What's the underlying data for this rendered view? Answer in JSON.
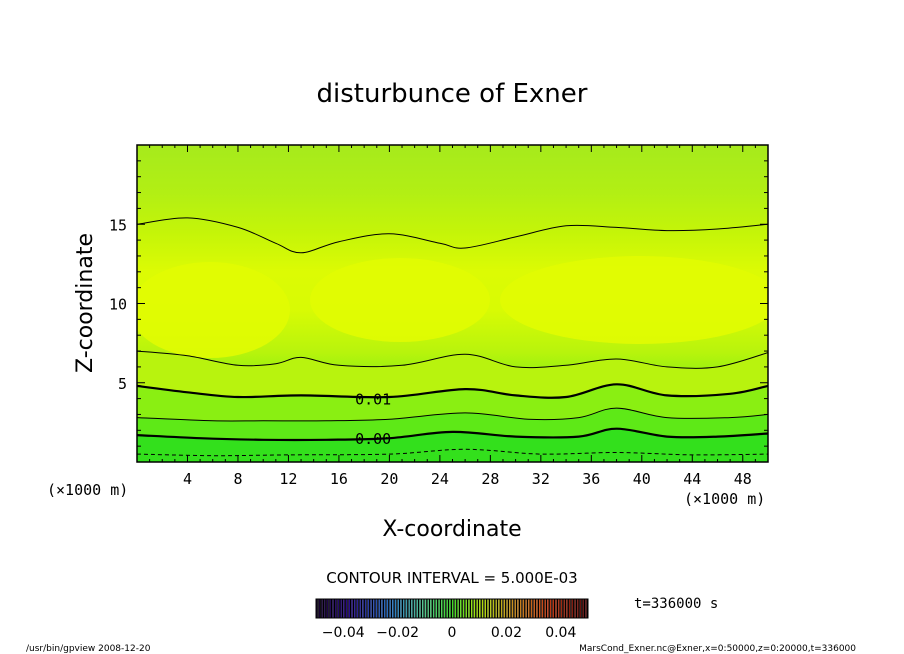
{
  "chart_data": {
    "type": "contour",
    "title": "disturbunce of Exner",
    "xlabel": "X-coordinate",
    "ylabel": "Z-coordinate",
    "x_unit_note": "(×1000 m)",
    "y_unit_note": "(×1000 m)",
    "xlim": [
      0,
      50
    ],
    "ylim": [
      0,
      20
    ],
    "x_ticks": [
      "4",
      "8",
      "12",
      "16",
      "20",
      "24",
      "28",
      "32",
      "36",
      "40",
      "44",
      "48"
    ],
    "x_tick_values": [
      4,
      8,
      12,
      16,
      20,
      24,
      28,
      32,
      36,
      40,
      44,
      48
    ],
    "y_ticks": [
      "5",
      "10",
      "15"
    ],
    "y_tick_values": [
      5,
      10,
      15
    ],
    "contour_interval_label": "CONTOUR INTERVAL = 5.000E-03",
    "contour_labels": [
      {
        "text": "0.01",
        "x": 17.2,
        "z": 4.0
      },
      {
        "text": "0.00",
        "x": 17.2,
        "z": 1.5
      }
    ],
    "contour_lines": [
      {
        "name": "contour-0.00",
        "bold": true,
        "dashed": false,
        "points": [
          [
            0,
            1.7
          ],
          [
            5,
            1.5
          ],
          [
            10,
            1.4
          ],
          [
            15,
            1.4
          ],
          [
            20,
            1.5
          ],
          [
            25,
            1.9
          ],
          [
            30,
            1.6
          ],
          [
            35,
            1.6
          ],
          [
            38,
            2.1
          ],
          [
            42,
            1.6
          ],
          [
            46,
            1.6
          ],
          [
            50,
            1.8
          ]
        ]
      },
      {
        "name": "contour-0.005",
        "bold": false,
        "dashed": false,
        "points": [
          [
            0,
            2.8
          ],
          [
            6,
            2.6
          ],
          [
            10,
            2.6
          ],
          [
            15,
            2.6
          ],
          [
            20,
            2.7
          ],
          [
            26,
            3.1
          ],
          [
            31,
            2.7
          ],
          [
            35,
            2.8
          ],
          [
            38,
            3.4
          ],
          [
            42,
            2.8
          ],
          [
            47,
            2.8
          ],
          [
            50,
            3.0
          ]
        ]
      },
      {
        "name": "contour-0.01",
        "bold": true,
        "dashed": false,
        "points": [
          [
            0,
            4.8
          ],
          [
            4,
            4.4
          ],
          [
            8,
            4.1
          ],
          [
            13,
            4.2
          ],
          [
            20,
            4.1
          ],
          [
            26,
            4.6
          ],
          [
            30,
            4.2
          ],
          [
            34,
            4.1
          ],
          [
            38,
            4.9
          ],
          [
            42,
            4.2
          ],
          [
            47,
            4.3
          ],
          [
            50,
            4.8
          ]
        ]
      },
      {
        "name": "contour-0.015",
        "bold": false,
        "dashed": false,
        "points": [
          [
            0,
            7.0
          ],
          [
            4,
            6.7
          ],
          [
            8,
            6.1
          ],
          [
            11,
            6.2
          ],
          [
            13,
            6.6
          ],
          [
            16,
            6.1
          ],
          [
            21,
            6.1
          ],
          [
            26,
            6.8
          ],
          [
            30,
            6.0
          ],
          [
            34,
            6.1
          ],
          [
            38,
            6.5
          ],
          [
            42,
            6.0
          ],
          [
            46,
            6.0
          ],
          [
            50,
            6.9
          ]
        ]
      },
      {
        "name": "contour-0.015-upper",
        "bold": false,
        "dashed": false,
        "points": [
          [
            0,
            15.0
          ],
          [
            4,
            15.4
          ],
          [
            8,
            14.8
          ],
          [
            11,
            13.8
          ],
          [
            13,
            13.2
          ],
          [
            16,
            13.9
          ],
          [
            20,
            14.4
          ],
          [
            24,
            13.8
          ],
          [
            26,
            13.5
          ],
          [
            30,
            14.2
          ],
          [
            34,
            14.9
          ],
          [
            38,
            14.8
          ],
          [
            42,
            14.6
          ],
          [
            46,
            14.7
          ],
          [
            50,
            15.0
          ]
        ]
      },
      {
        "name": "contour-dashed",
        "bold": false,
        "dashed": true,
        "points": [
          [
            0,
            0.5
          ],
          [
            6,
            0.4
          ],
          [
            12,
            0.45
          ],
          [
            20,
            0.5
          ],
          [
            26,
            0.8
          ],
          [
            32,
            0.5
          ],
          [
            38,
            0.6
          ],
          [
            44,
            0.45
          ],
          [
            50,
            0.5
          ]
        ]
      }
    ],
    "colorbar": {
      "ticks": [
        "−0.04",
        "−0.02",
        "0",
        "0.02",
        "0.04"
      ],
      "tick_values": [
        -0.04,
        -0.02,
        0,
        0.02,
        0.04
      ],
      "range": [
        -0.05,
        0.05
      ],
      "time_label": "t=336000 s"
    },
    "footer_left": "/usr/bin/gpview   2008-12-20",
    "footer_right": "MarsCond_Exner.nc@Exner,x=0:50000,z=0:20000,t=336000"
  }
}
